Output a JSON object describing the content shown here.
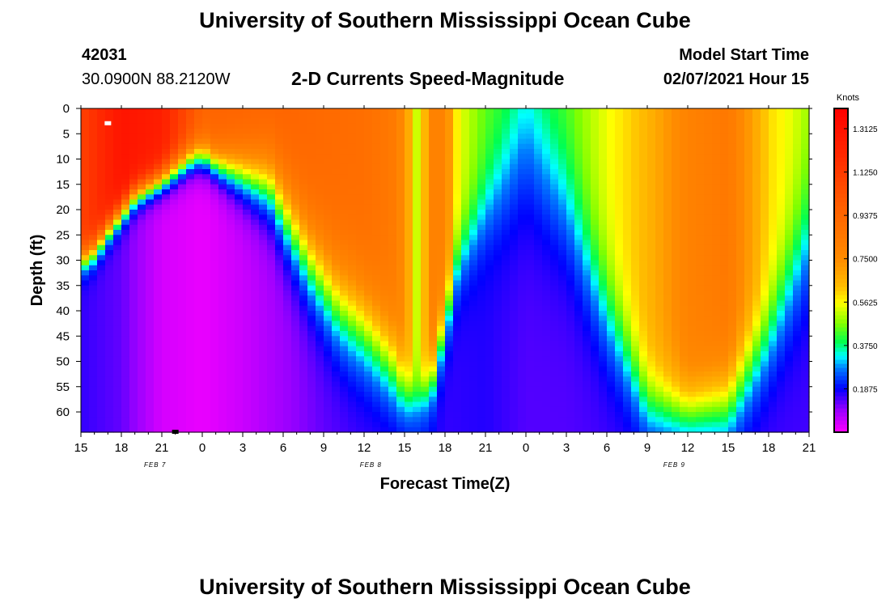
{
  "title": "University of Southern Mississippi Ocean Cube",
  "footer_title": "University of Southern Mississippi Ocean Cube",
  "station": {
    "id": "42031",
    "position": "30.0900N 88.2120W"
  },
  "model": {
    "label": "Model Start Time",
    "time": "02/07/2021 Hour 15"
  },
  "chart_data": {
    "type": "heatmap",
    "title": "2-D Currents Speed-Magnitude",
    "xlabel": "Forecast Time(Z)",
    "ylabel": "Depth (ft)",
    "x_range": [
      15,
      69
    ],
    "x_tick_values": [
      15,
      18,
      21,
      24,
      27,
      30,
      33,
      36,
      39,
      42,
      45,
      48,
      51,
      54,
      57,
      60,
      63,
      66,
      69
    ],
    "x_tick_labels": [
      "15",
      "18",
      "21",
      "0",
      "3",
      "6",
      "9",
      "12",
      "15",
      "18",
      "21",
      "0",
      "3",
      "6",
      "9",
      "12",
      "15",
      "18",
      "21"
    ],
    "day_labels": [
      {
        "text": "FEB 7",
        "x": 20.5
      },
      {
        "text": "FEB 8",
        "x": 36.5
      },
      {
        "text": "FEB 9",
        "x": 59
      }
    ],
    "y_range": [
      0,
      64
    ],
    "y_ticks": [
      0,
      5,
      10,
      15,
      20,
      25,
      30,
      35,
      40,
      45,
      50,
      55,
      60
    ],
    "colorbar": {
      "unit": "Knots",
      "range": [
        0.0,
        1.4
      ],
      "tick_values": [
        1.3125,
        1.125,
        0.9375,
        0.75,
        0.5625,
        0.375,
        0.1875
      ],
      "tick_labels": [
        "1.3125",
        "1.1250",
        "0.9375",
        "0.7500",
        "0.5625",
        "0.3750",
        "0.1875"
      ]
    },
    "surface_speed_by_time": [
      [
        15,
        1.1
      ],
      [
        18,
        1.3
      ],
      [
        21,
        1.25
      ],
      [
        24,
        0.95
      ],
      [
        27,
        0.95
      ],
      [
        30,
        0.95
      ],
      [
        33,
        0.92
      ],
      [
        36,
        0.9
      ],
      [
        38,
        0.85
      ],
      [
        39,
        0.75
      ],
      [
        40,
        0.5
      ],
      [
        41,
        0.8
      ],
      [
        42,
        0.8
      ],
      [
        43,
        0.55
      ],
      [
        45,
        0.45
      ],
      [
        48,
        0.4
      ],
      [
        51,
        0.45
      ],
      [
        54,
        0.55
      ],
      [
        57,
        0.65
      ],
      [
        60,
        0.8
      ],
      [
        63,
        0.85
      ],
      [
        66,
        0.6
      ],
      [
        69,
        0.5
      ]
    ],
    "bottom_speed_by_time": [
      [
        15,
        0.16
      ],
      [
        18,
        0.13
      ],
      [
        21,
        0.04
      ],
      [
        24,
        0.02
      ],
      [
        27,
        0.05
      ],
      [
        30,
        0.09
      ],
      [
        33,
        0.13
      ],
      [
        36,
        0.15
      ],
      [
        38,
        0.15
      ],
      [
        39,
        0.16
      ],
      [
        40,
        0.2
      ],
      [
        42,
        0.16
      ],
      [
        45,
        0.17
      ],
      [
        48,
        0.14
      ],
      [
        51,
        0.14
      ],
      [
        54,
        0.15
      ],
      [
        57,
        0.16
      ],
      [
        60,
        0.16
      ],
      [
        63,
        0.16
      ],
      [
        66,
        0.15
      ],
      [
        69,
        0.15
      ]
    ],
    "transition_depth_ft_by_time": [
      [
        15,
        30
      ],
      [
        16,
        28
      ],
      [
        17,
        24
      ],
      [
        19,
        17
      ],
      [
        21,
        14
      ],
      [
        23,
        10
      ],
      [
        24,
        9
      ],
      [
        25,
        11
      ],
      [
        27,
        13
      ],
      [
        29,
        15
      ],
      [
        30,
        20
      ],
      [
        32,
        30
      ],
      [
        34,
        38
      ],
      [
        36,
        43
      ],
      [
        38,
        50
      ],
      [
        39,
        56
      ],
      [
        40,
        58
      ],
      [
        41,
        54
      ],
      [
        43,
        30
      ],
      [
        45,
        20
      ],
      [
        48,
        8
      ],
      [
        51,
        20
      ],
      [
        54,
        40
      ],
      [
        57,
        58
      ],
      [
        60,
        60
      ],
      [
        63,
        58
      ],
      [
        66,
        45
      ],
      [
        69,
        25
      ]
    ],
    "transition_width_ft_by_time": [
      [
        15,
        6
      ],
      [
        20,
        6
      ],
      [
        25,
        8
      ],
      [
        30,
        18
      ],
      [
        35,
        22
      ],
      [
        38,
        20
      ],
      [
        40,
        10
      ],
      [
        45,
        20
      ],
      [
        48,
        35
      ],
      [
        51,
        30
      ],
      [
        54,
        25
      ],
      [
        57,
        18
      ],
      [
        60,
        15
      ],
      [
        66,
        22
      ],
      [
        69,
        30
      ]
    ],
    "markers": [
      {
        "x": 17.0,
        "y": 3,
        "color": "#ffffff"
      },
      {
        "x": 22.0,
        "y": 64,
        "color": "#000000"
      }
    ]
  }
}
